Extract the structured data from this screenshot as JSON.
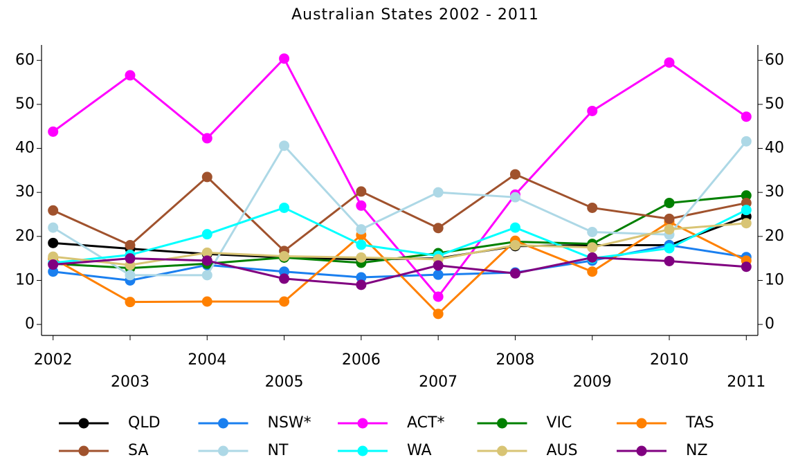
{
  "chart_data": {
    "type": "line",
    "title": "Australian States 2002 - 2011",
    "x": [
      2002,
      2003,
      2004,
      2005,
      2006,
      2007,
      2008,
      2009,
      2010,
      2011
    ],
    "xlim": [
      2001.85,
      2011.15
    ],
    "xticks": [
      2002,
      2003,
      2004,
      2005,
      2006,
      2007,
      2008,
      2009,
      2010,
      2011
    ],
    "ylim": [
      -2.5,
      63.5
    ],
    "yticks": [
      0,
      10,
      20,
      30,
      40,
      50,
      60
    ],
    "series": [
      {
        "name": "QLD",
        "color": "#000000",
        "values": [
          18.5,
          17.2,
          16,
          15.2,
          14.8,
          15,
          17.8,
          18,
          18,
          24.5
        ]
      },
      {
        "name": "NSW*",
        "color": "#1a7fef",
        "values": [
          12,
          10,
          13.5,
          12,
          10.7,
          11.3,
          11.8,
          14.5,
          18,
          15.3
        ]
      },
      {
        "name": "ACT*",
        "color": "#ff00ff",
        "values": [
          43.8,
          56.6,
          42.3,
          60.4,
          27,
          6.3,
          29.5,
          48.5,
          59.5,
          47.2
        ]
      },
      {
        "name": "VIC",
        "color": "#008000",
        "values": [
          13.8,
          12.8,
          13.8,
          15.2,
          14,
          16.2,
          18.8,
          18.3,
          27.6,
          29.3
        ]
      },
      {
        "name": "TAS",
        "color": "#ff8000",
        "values": [
          15,
          5.1,
          5.2,
          5.2,
          20.3,
          2.4,
          19,
          12,
          23.3,
          14.5
        ]
      },
      {
        "name": "SA",
        "color": "#a0522d",
        "values": [
          25.9,
          18,
          33.5,
          16.7,
          30.2,
          21.9,
          34.1,
          26.5,
          24,
          27.6
        ]
      },
      {
        "name": "NT",
        "color": "#add8e6",
        "values": [
          22,
          11.2,
          11.2,
          40.6,
          21.6,
          30,
          28.9,
          21,
          20.4,
          41.6
        ]
      },
      {
        "name": "WA",
        "color": "#00ffff",
        "values": [
          14,
          15.8,
          20.5,
          26.5,
          18.1,
          15.6,
          22,
          15,
          17.3,
          26
        ]
      },
      {
        "name": "AUS",
        "color": "#d8c474",
        "values": [
          15.4,
          13.5,
          16.3,
          15.5,
          15.2,
          14.8,
          18,
          17.5,
          21.6,
          23
        ]
      },
      {
        "name": "NZ",
        "color": "#800080",
        "values": [
          13.6,
          15,
          14.5,
          10.4,
          9,
          13.4,
          11.6,
          15.2,
          14.4,
          13.1
        ]
      }
    ]
  }
}
